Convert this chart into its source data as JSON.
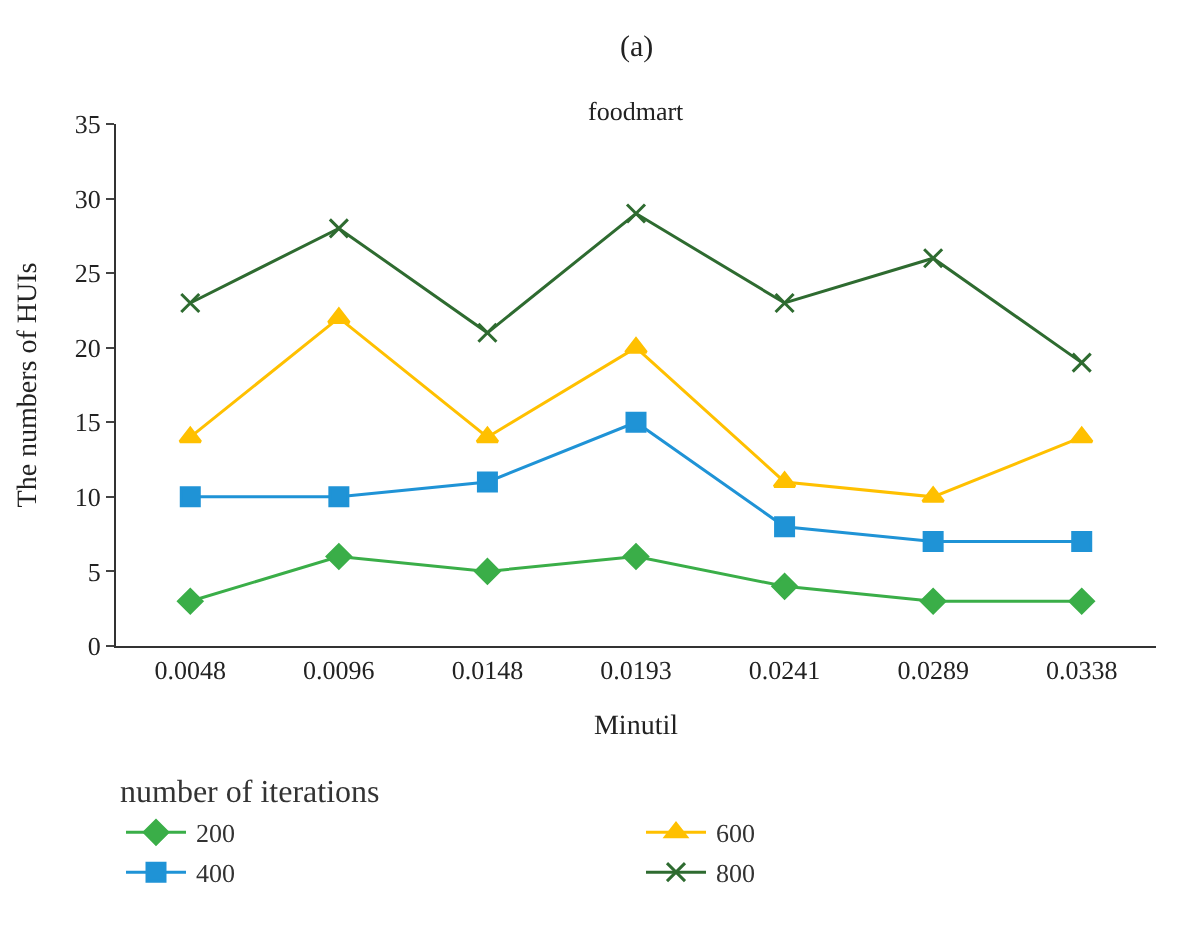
{
  "chart_data": {
    "type": "line",
    "title": "(a)",
    "subtitle": "foodmart",
    "xlabel": "Minutil",
    "ylabel": "The numbers of HUIs",
    "legend_title": "number of iterations",
    "categories": [
      "0.0048",
      "0.0096",
      "0.0148",
      "0.0193",
      "0.0241",
      "0.0289",
      "0.0338"
    ],
    "series": [
      {
        "name": "200",
        "color": "#3aae48",
        "marker": "diamond",
        "values": [
          3,
          6,
          5,
          6,
          4,
          3,
          3
        ]
      },
      {
        "name": "400",
        "color": "#1f93d6",
        "marker": "square",
        "values": [
          10,
          10,
          11,
          15,
          8,
          7,
          7
        ]
      },
      {
        "name": "600",
        "color": "#ffc000",
        "marker": "triangle",
        "values": [
          14,
          22,
          14,
          20,
          11,
          10,
          14
        ]
      },
      {
        "name": "800",
        "color": "#2e6b30",
        "marker": "cross",
        "values": [
          23,
          28,
          21,
          29,
          23,
          26,
          19
        ]
      }
    ],
    "ylim": [
      0,
      35
    ],
    "yticks": [
      0,
      5,
      10,
      15,
      20,
      25,
      30,
      35
    ],
    "legend": "bottom",
    "line_style": "solid"
  }
}
